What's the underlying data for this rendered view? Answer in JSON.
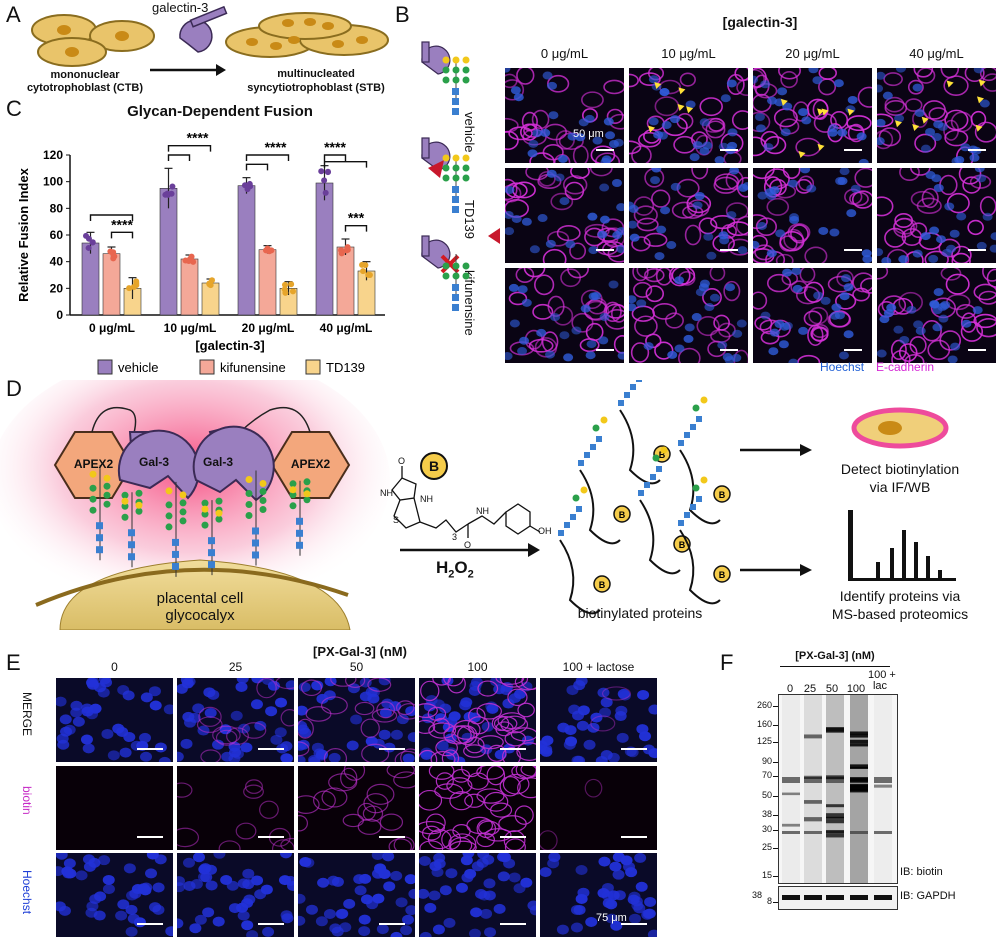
{
  "panels": {
    "a": "A",
    "b": "B",
    "c": "C",
    "d": "D",
    "e": "E",
    "f": "F"
  },
  "panelA": {
    "galectin": "galectin-3",
    "ctb_line1": "mononuclear",
    "ctb_line2": "cytotrophoblast (CTB)",
    "stb_line1": "multinucleated",
    "stb_line2": "syncytiotrophoblast (STB)"
  },
  "panelB": {
    "title": "[galectin-3]",
    "columns": [
      "0 μg/mL",
      "10 μg/mL",
      "20 μg/mL",
      "40 μg/mL"
    ],
    "rows": [
      "vehicle",
      "TD139",
      "kifunensine"
    ],
    "scale": "50 μm",
    "legend_hoechst": "Hoechst",
    "legend_ecad": "E-cadherin",
    "colors": {
      "hoechst": "#1f5fd6",
      "ecad": "#d62ad6"
    }
  },
  "chart_data": {
    "type": "bar",
    "title": "Glycan-Dependent Fusion",
    "xlabel": "[galectin-3]",
    "ylabel": "Relative Fusion Index",
    "ylim": [
      0,
      120
    ],
    "yticks": [
      0,
      20,
      40,
      60,
      80,
      100,
      120
    ],
    "categories": [
      "0 μg/mL",
      "10 μg/mL",
      "20 μg/mL",
      "40 μg/mL"
    ],
    "series": [
      {
        "name": "vehicle",
        "color": "#9a7fbf",
        "values": [
          54,
          95,
          97,
          99
        ],
        "err": [
          8,
          15,
          6,
          13
        ]
      },
      {
        "name": "kifunensine",
        "color": "#f4a898",
        "values": [
          46,
          42,
          49,
          51
        ],
        "err": [
          5,
          3,
          3,
          6
        ]
      },
      {
        "name": "TD139",
        "color": "#f8d48c",
        "values": [
          20,
          24,
          20,
          33
        ],
        "err": [
          8,
          3,
          5,
          7
        ]
      }
    ],
    "significance": [
      "****",
      "****",
      "****",
      "****",
      "****",
      "***"
    ]
  },
  "panelD": {
    "apex": "APEX2",
    "gal3": "Gal-3",
    "cell_line1": "placental cell",
    "cell_line2": "glycocalyx",
    "h2o2": "H2O2",
    "biotin": "B",
    "sub3": "3",
    "proteins": "biotinylated proteins",
    "detect_line1": "Detect biotinylation",
    "detect_line2": "via IF/WB",
    "identify_line1": "Identify proteins via",
    "identify_line2": "MS-based proteomics",
    "chem": {
      "nh1": "NH",
      "nh2": "NH",
      "h1": "H",
      "h2": "H",
      "o1": "O",
      "o2": "O",
      "s": "S",
      "oh": "OH"
    }
  },
  "panelE": {
    "title": "[PX-Gal-3] (nM)",
    "columns": [
      "0",
      "25",
      "50",
      "100",
      "100 + lactose"
    ],
    "rows": [
      "MERGE",
      "biotin",
      "Hoechst"
    ],
    "scale": "75 μm"
  },
  "panelF": {
    "title": "[PX-Gal-3] (nM)",
    "lanes": [
      "0",
      "25",
      "50",
      "100",
      "100 +\nlac"
    ],
    "markers": [
      "260",
      "160",
      "125",
      "90",
      "70",
      "50",
      "38",
      "30",
      "25",
      "15",
      "8"
    ],
    "ib_biotin": "IB: biotin",
    "gapdh_marker": "38",
    "ib_gapdh": "IB: GAPDH"
  }
}
